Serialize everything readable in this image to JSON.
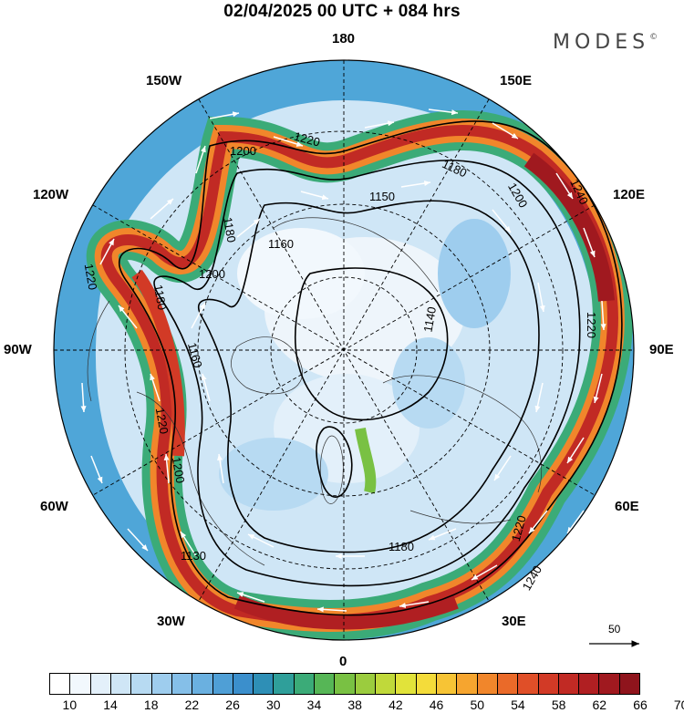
{
  "header": {
    "title": "02/04/2025  00 UTC  + 084 hrs",
    "brand": "MODES",
    "brand_mark": "©"
  },
  "longitude_labels": {
    "lon_180": "180",
    "lon_150e": "150E",
    "lon_120e": "120E",
    "lon_90e": "90E",
    "lon_60e": "60E",
    "lon_30e": "30E",
    "lon_0": "0",
    "lon_30w": "30W",
    "lon_60w": "60W",
    "lon_90w": "90W",
    "lon_120w": "120W",
    "lon_150w": "150W"
  },
  "contour_labels": [
    "1200",
    "1220",
    "1180",
    "1150",
    "1160",
    "1200",
    "1180",
    "1200",
    "1240",
    "1220",
    "1140",
    "1130",
    "1180",
    "1220",
    "1240",
    "1200",
    "1220",
    "1220",
    "1160",
    "1180"
  ],
  "wind_scale": {
    "label": "50"
  },
  "colorbar": {
    "colors": [
      "#ffffff",
      "#f2f8fd",
      "#e3f0fa",
      "#cfe6f6",
      "#b7daf2",
      "#9ecdee",
      "#85bfe8",
      "#6ab0e0",
      "#4f9fd6",
      "#3b8fcc",
      "#2e8fb6",
      "#2f9f9a",
      "#3bab78",
      "#56b656",
      "#79c143",
      "#9bcc3e",
      "#c0d93a",
      "#e1e33a",
      "#f4dc3a",
      "#f7c435",
      "#f6a52f",
      "#f1862b",
      "#ea6a29",
      "#e04f28",
      "#d23a26",
      "#c12a24",
      "#b01f22",
      "#a0191f",
      "#8f141c"
    ],
    "tick_labels": [
      "10",
      "14",
      "18",
      "22",
      "26",
      "30",
      "34",
      "38",
      "42",
      "46",
      "50",
      "54",
      "58",
      "62",
      "66",
      "70"
    ]
  }
}
